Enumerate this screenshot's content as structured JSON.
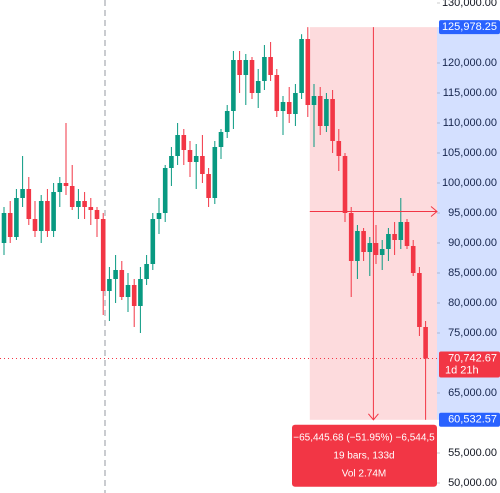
{
  "chart_data": {
    "type": "candlestick",
    "up_color": "#089981",
    "down_color": "#f23645",
    "ylim": [
      48333,
      130500
    ],
    "yticks": [
      {
        "value": 130000,
        "label": "130,000.00"
      },
      {
        "value": 120000,
        "label": "120,000.00"
      },
      {
        "value": 115000,
        "label": "115,000.00"
      },
      {
        "value": 110000,
        "label": "110,000.00"
      },
      {
        "value": 105000,
        "label": "105,000.00"
      },
      {
        "value": 100000,
        "label": "100,000.00"
      },
      {
        "value": 95000,
        "label": "95,000.00"
      },
      {
        "value": 90000,
        "label": "90,000.00"
      },
      {
        "value": 85000,
        "label": "85,000.00"
      },
      {
        "value": 80000,
        "label": "80,000.00"
      },
      {
        "value": 75000,
        "label": "75,000.00"
      },
      {
        "value": 65000,
        "label": "65,000.00"
      },
      {
        "value": 55000,
        "label": "55,000.00"
      },
      {
        "value": 50000,
        "label": "50,000.00"
      }
    ],
    "open": [
      90000,
      95000,
      91000,
      97500,
      99000,
      94000,
      92000,
      97000,
      92000,
      98500,
      100000,
      99500,
      96000,
      97000,
      96000,
      95500,
      94000,
      82000,
      84000,
      85500,
      81000,
      83000,
      79500,
      84000,
      86500,
      94000,
      95000,
      102500,
      104500,
      108000,
      105500,
      103500,
      104500,
      101500,
      97500,
      106000,
      108500,
      112000,
      120500,
      118000,
      120500,
      115000,
      117000,
      121000,
      118000,
      112000,
      113500,
      111500,
      115000,
      124000,
      113000,
      114500,
      109500,
      114000,
      107000,
      104500,
      95000,
      87000,
      92000,
      88500,
      90000,
      88000,
      89000,
      91500,
      90500,
      93500,
      89500,
      85000,
      76000
    ],
    "high": [
      96000,
      97000,
      99000,
      104500,
      101000,
      97000,
      98000,
      99000,
      100000,
      101000,
      110000,
      103000,
      99000,
      98500,
      97500,
      96000,
      95000,
      86000,
      88000,
      87000,
      85000,
      84000,
      86000,
      88000,
      95000,
      97500,
      103000,
      106000,
      110000,
      109000,
      107000,
      106500,
      108000,
      102500,
      107000,
      109000,
      113000,
      122000,
      122000,
      121500,
      121000,
      119000,
      123000,
      123500,
      119000,
      114500,
      116000,
      116500,
      124800,
      125978.25,
      116500,
      116000,
      115000,
      115500,
      109000,
      105000,
      96000,
      93000,
      92500,
      91000,
      93000,
      90500,
      92500,
      93500,
      97500,
      94000,
      90500,
      86000,
      77000
    ],
    "low": [
      88000,
      90000,
      90500,
      96000,
      93000,
      91000,
      90000,
      91000,
      91000,
      96000,
      98000,
      95500,
      94000,
      94000,
      93000,
      91000,
      78000,
      77000,
      80000,
      80500,
      78500,
      76000,
      75000,
      83000,
      85500,
      91500,
      93500,
      99500,
      103000,
      103000,
      101000,
      99000,
      100000,
      96000,
      96500,
      104000,
      107500,
      109000,
      115000,
      113000,
      114000,
      112500,
      115500,
      117000,
      111000,
      108000,
      110000,
      109500,
      114000,
      111000,
      106000,
      108000,
      108500,
      105000,
      102000,
      93500,
      81000,
      84000,
      87000,
      84500,
      86500,
      85500,
      87000,
      88000,
      89000,
      89000,
      84500,
      74500,
      60532.57
    ],
    "close": [
      95000,
      91000,
      97500,
      99000,
      94000,
      92000,
      97000,
      92000,
      98500,
      100000,
      99500,
      96000,
      97000,
      96000,
      95500,
      94000,
      82000,
      84000,
      85500,
      81000,
      83000,
      79500,
      84000,
      86500,
      94000,
      95000,
      102500,
      104500,
      108000,
      105500,
      103500,
      104500,
      101500,
      97500,
      106000,
      108500,
      112000,
      120500,
      118000,
      120500,
      115000,
      117000,
      121000,
      118000,
      112000,
      113500,
      111500,
      115000,
      124000,
      113000,
      114500,
      109500,
      114000,
      107000,
      104500,
      95000,
      87000,
      92000,
      88500,
      90000,
      88000,
      89000,
      91500,
      90500,
      93500,
      89500,
      85000,
      76000,
      70742.67
    ],
    "price_labels": [
      {
        "value": 125978.25,
        "label": "125,978.25",
        "color": "#2962ff"
      },
      {
        "value": 70742.67,
        "label": "70,742.67",
        "color": "#f23645",
        "countdown": "1d 21h"
      },
      {
        "value": 60532.57,
        "label": "60,532.57",
        "color": "#2962ff"
      }
    ],
    "measure": {
      "change": "−65,445.68 (−51.95%) −6,544,5",
      "bars": "19 bars, 133d",
      "volume": "Vol 2.74M"
    }
  }
}
